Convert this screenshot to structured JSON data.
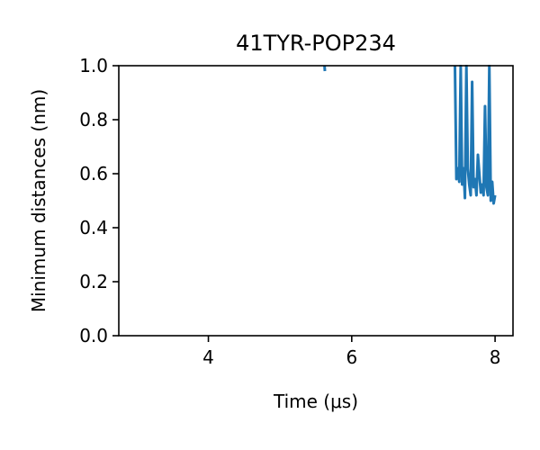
{
  "chart_data": {
    "type": "line",
    "title": "41TYR-POP234",
    "xlabel": "Time (μs)",
    "ylabel": "Minimum distances (nm)",
    "xlim": [
      2.75,
      8.25
    ],
    "ylim": [
      0.0,
      1.0
    ],
    "grid": false,
    "xticks": [
      4,
      6,
      8
    ],
    "xtick_labels": [
      "4",
      "6",
      "8"
    ],
    "yticks": [
      0.0,
      0.2,
      0.4,
      0.6,
      0.8,
      1.0
    ],
    "ytick_labels": [
      "0.0",
      "0.2",
      "0.4",
      "0.6",
      "0.8",
      "1.0"
    ],
    "series": [
      {
        "color": "#1f77b4",
        "segments": [
          {
            "x": [
              5.62,
              5.625
            ],
            "y": [
              1.0,
              0.98
            ]
          },
          {
            "x": [
              7.44,
              7.46,
              7.48,
              7.5,
              7.52,
              7.54,
              7.56,
              7.58,
              7.6,
              7.62,
              7.64,
              7.66,
              7.68,
              7.7,
              7.72,
              7.74,
              7.76,
              7.78,
              7.8,
              7.82,
              7.84,
              7.86,
              7.88,
              7.9,
              7.92,
              7.94,
              7.96,
              7.98,
              8.0
            ],
            "y": [
              1.0,
              0.58,
              0.62,
              0.57,
              1.0,
              0.56,
              0.62,
              0.51,
              1.0,
              0.62,
              0.56,
              0.52,
              0.94,
              0.55,
              0.58,
              0.52,
              0.67,
              0.6,
              0.53,
              0.56,
              0.52,
              0.85,
              0.55,
              0.52,
              1.0,
              0.5,
              0.57,
              0.49,
              0.52
            ]
          }
        ]
      }
    ]
  }
}
